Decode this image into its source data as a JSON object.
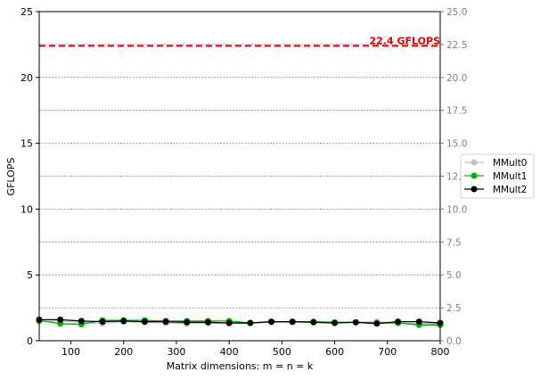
{
  "chart_data": {
    "type": "line",
    "title": "",
    "xlabel": "Matrix dimensions: m = n = k",
    "ylabel": "GFLOPS",
    "xlim": [
      40,
      800
    ],
    "ylim": [
      0,
      25
    ],
    "x_ticks": [
      100,
      200,
      300,
      400,
      500,
      600,
      700,
      800
    ],
    "y_ticks_left": [
      0,
      5,
      10,
      15,
      20,
      25
    ],
    "y_ticks_right": [
      "0.0",
      "2.5",
      "5.0",
      "7.5",
      "10.0",
      "12.5",
      "15.0",
      "17.5",
      "20.0",
      "22.5",
      "25.0"
    ],
    "right_grid": [
      2.5,
      5.0,
      7.5,
      10.0,
      12.5,
      15.0,
      17.5,
      20.0,
      22.5
    ],
    "grid": "right-axis dotted horizontal",
    "legend_position": "right, outside plot",
    "x": [
      40,
      80,
      120,
      160,
      200,
      240,
      280,
      320,
      360,
      400,
      440,
      480,
      520,
      560,
      600,
      640,
      680,
      720,
      760,
      800
    ],
    "series": [
      {
        "name": "MMult0",
        "color": "#c0c0c0",
        "values": [
          1.45,
          1.5,
          1.4,
          1.3,
          1.45,
          1.4,
          1.35,
          1.3,
          1.35,
          1.3,
          1.35,
          1.4,
          1.4,
          1.45,
          1.4,
          1.4,
          1.45,
          1.35,
          1.3,
          1.3
        ]
      },
      {
        "name": "MMult1",
        "color": "#00b000",
        "values": [
          1.55,
          1.3,
          1.25,
          1.55,
          1.55,
          1.55,
          1.5,
          1.5,
          1.5,
          1.5,
          1.35,
          1.45,
          1.45,
          1.45,
          1.4,
          1.4,
          1.35,
          1.35,
          1.2,
          1.2
        ]
      },
      {
        "name": "MMult2",
        "color": "#000000",
        "values": [
          1.6,
          1.6,
          1.5,
          1.45,
          1.5,
          1.45,
          1.45,
          1.4,
          1.4,
          1.35,
          1.35,
          1.45,
          1.45,
          1.4,
          1.35,
          1.4,
          1.3,
          1.45,
          1.45,
          1.35
        ]
      }
    ],
    "peak_line": {
      "value": 22.4,
      "label": "22.4 GFLOPS",
      "color": "#dd0000"
    }
  }
}
